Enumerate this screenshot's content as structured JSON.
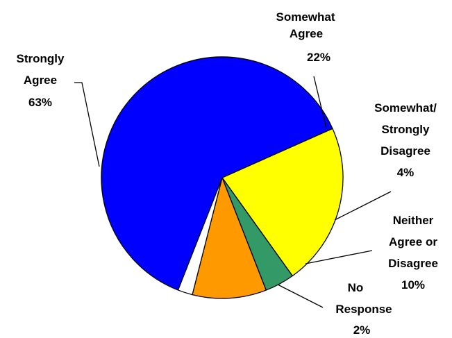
{
  "chart_data": {
    "type": "pie",
    "slices": [
      {
        "label": [
          "Somewhat",
          "Agree",
          "22%"
        ],
        "value": 22,
        "color": "#ffff00"
      },
      {
        "label": [
          "Somewhat/",
          "Strongly",
          "Disagree",
          "4%"
        ],
        "value": 4,
        "color": "#339966"
      },
      {
        "label": [
          "Neither",
          "Agree or",
          "Disagree",
          "10%"
        ],
        "value": 10,
        "color": "#ff9900"
      },
      {
        "label": [
          "No",
          "Response",
          "2%"
        ],
        "value": 2,
        "color": "#ffffff"
      },
      {
        "label": [
          "Strongly",
          "Agree",
          "63%"
        ],
        "value": 63,
        "color": "#0000ff"
      }
    ]
  }
}
